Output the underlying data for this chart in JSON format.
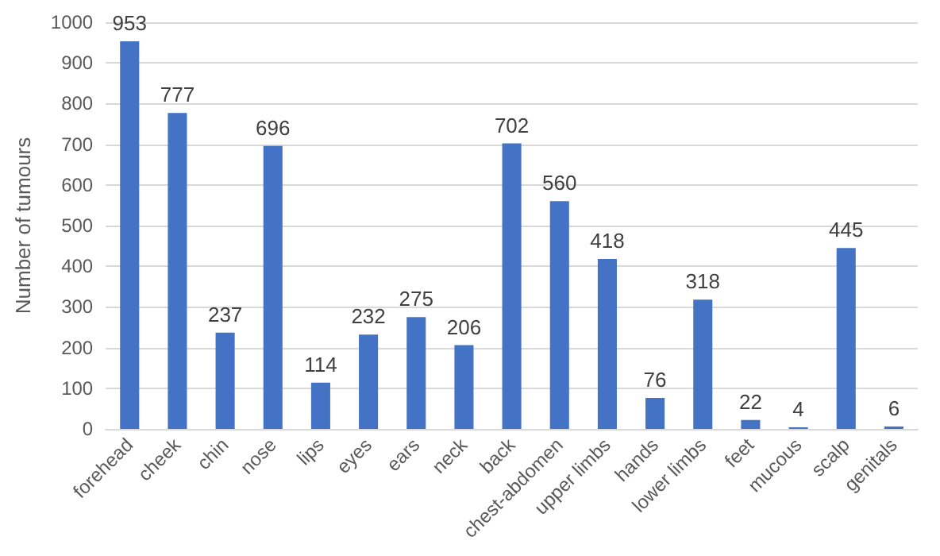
{
  "chart_data": {
    "type": "bar",
    "ylabel": "Number of tumours",
    "categories": [
      "forehead",
      "cheek",
      "chin",
      "nose",
      "lips",
      "eyes",
      "ears",
      "neck",
      "back",
      "chest-abdomen",
      "upper limbs",
      "hands",
      "lower limbs",
      "feet",
      "mucous",
      "scalp",
      "genitals"
    ],
    "values": [
      953,
      777,
      237,
      696,
      114,
      232,
      275,
      206,
      702,
      560,
      418,
      76,
      318,
      22,
      4,
      445,
      6
    ],
    "color": "#4472c4",
    "ylim": [
      0,
      1000
    ],
    "yticks": [
      0,
      100,
      200,
      300,
      400,
      500,
      600,
      700,
      800,
      900,
      1000
    ],
    "grid": "y",
    "data_labels": true
  }
}
